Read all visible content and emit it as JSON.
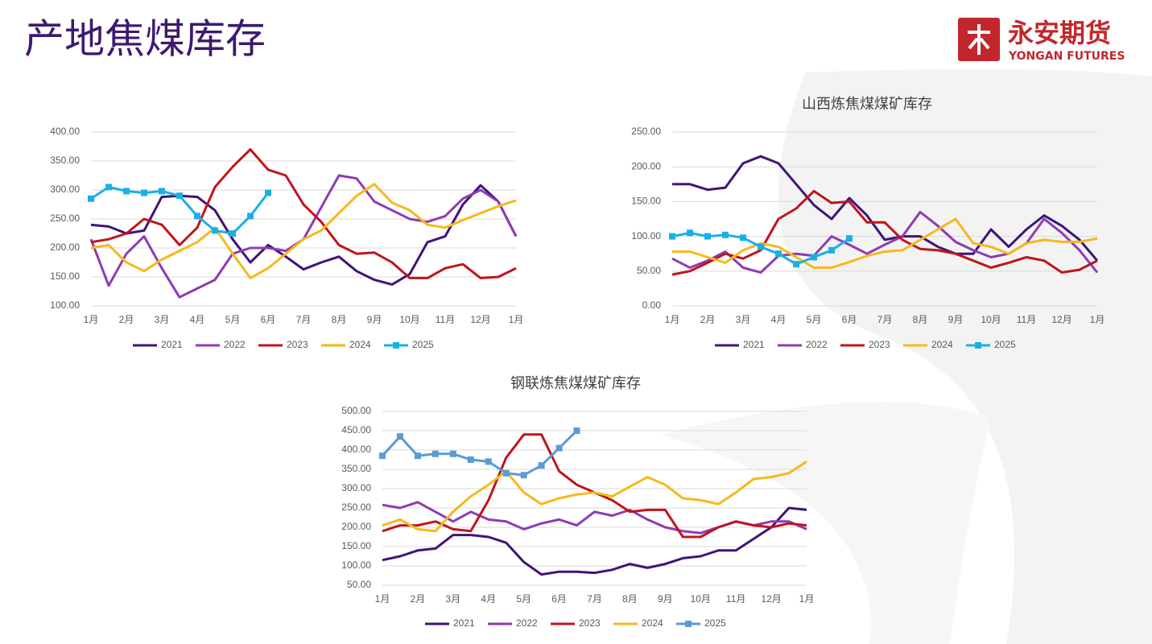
{
  "header": {
    "title": "产地焦煤库存",
    "logo_text": "永安期货",
    "logo_sub": "YONGAN FUTURES"
  },
  "chart_data": [
    {
      "type": "line",
      "categories": [
        "1月",
        null,
        "2月",
        null,
        "3月",
        null,
        "4月",
        null,
        "5月",
        null,
        "6月",
        null,
        "7月",
        null,
        "8月",
        null,
        "9月",
        null,
        "10月",
        null,
        "11月",
        null,
        "12月",
        null,
        "1月"
      ],
      "ylim": [
        100,
        400
      ],
      "yticks": [
        {
          "value": 100,
          "label": "100.00"
        },
        {
          "value": 150,
          "label": "150.00"
        },
        {
          "value": 200,
          "label": "200.00"
        },
        {
          "value": 250,
          "label": "250.00"
        },
        {
          "value": 300,
          "label": "300.00"
        },
        {
          "value": 350,
          "label": "350.00"
        },
        {
          "value": 400,
          "label": "400.00"
        }
      ],
      "grid": true,
      "legend": "bottom",
      "series": [
        {
          "name": "2021",
          "color": "#3f1479",
          "values": [
            240,
            237,
            225,
            230,
            288,
            290,
            288,
            265,
            215,
            175,
            205,
            185,
            163,
            175,
            185,
            160,
            145,
            137,
            155,
            210,
            220,
            275,
            308,
            280,
            220
          ]
        },
        {
          "name": "2022",
          "color": "#8e3bb5",
          "values": [
            215,
            135,
            190,
            220,
            165,
            115,
            130,
            145,
            190,
            200,
            200,
            195,
            215,
            270,
            325,
            320,
            280,
            265,
            250,
            245,
            255,
            285,
            300,
            280,
            220
          ]
        },
        {
          "name": "2023",
          "color": "#c0141c",
          "values": [
            210,
            215,
            225,
            250,
            240,
            205,
            235,
            305,
            340,
            370,
            335,
            325,
            275,
            245,
            205,
            190,
            192,
            175,
            148,
            148,
            165,
            172,
            148,
            150,
            165
          ]
        },
        {
          "name": "2024",
          "color": "#f6b81c",
          "values": [
            200,
            205,
            175,
            160,
            180,
            195,
            210,
            235,
            190,
            148,
            165,
            190,
            215,
            230,
            260,
            290,
            310,
            278,
            265,
            240,
            235,
            248,
            260,
            272,
            282
          ]
        },
        {
          "name": "2025",
          "color": "#1ab0e6",
          "marker": "square",
          "values": [
            285,
            305,
            298,
            295,
            298,
            290,
            255,
            230,
            225,
            255,
            295,
            null,
            null,
            null,
            null,
            null,
            null,
            null,
            null,
            null,
            null,
            null,
            null,
            null,
            null
          ]
        }
      ]
    },
    {
      "type": "line",
      "title": "山西炼焦煤煤矿库存",
      "categories": [
        "1月",
        null,
        "2月",
        null,
        "3月",
        null,
        "4月",
        null,
        "5月",
        null,
        "6月",
        null,
        "7月",
        null,
        "8月",
        null,
        "9月",
        null,
        "10月",
        null,
        "11月",
        null,
        "12月",
        null,
        "1月"
      ],
      "ylim": [
        0,
        250
      ],
      "yticks": [
        {
          "value": 0,
          "label": "0.00"
        },
        {
          "value": 50,
          "label": "50.00"
        },
        {
          "value": 100,
          "label": "100.00"
        },
        {
          "value": 150,
          "label": "150.00"
        },
        {
          "value": 200,
          "label": "200.00"
        },
        {
          "value": 250,
          "label": "250.00"
        }
      ],
      "grid": true,
      "legend": "bottom",
      "series": [
        {
          "name": "2021",
          "color": "#3f1479",
          "values": [
            175,
            175,
            167,
            170,
            205,
            215,
            205,
            175,
            145,
            125,
            155,
            130,
            95,
            100,
            100,
            85,
            75,
            75,
            110,
            85,
            110,
            130,
            115,
            95,
            65
          ]
        },
        {
          "name": "2022",
          "color": "#8e3bb5",
          "values": [
            68,
            55,
            65,
            78,
            55,
            48,
            72,
            75,
            72,
            100,
            88,
            75,
            88,
            100,
            135,
            115,
            92,
            80,
            70,
            75,
            90,
            125,
            105,
            80,
            48
          ]
        },
        {
          "name": "2023",
          "color": "#c0141c",
          "values": [
            45,
            50,
            62,
            75,
            68,
            80,
            125,
            140,
            165,
            148,
            150,
            120,
            120,
            95,
            82,
            80,
            75,
            65,
            55,
            62,
            70,
            65,
            48,
            52,
            65
          ]
        },
        {
          "name": "2024",
          "color": "#f6b81c",
          "values": [
            78,
            78,
            70,
            62,
            80,
            90,
            85,
            70,
            55,
            55,
            63,
            72,
            78,
            80,
            95,
            110,
            125,
            90,
            85,
            75,
            90,
            95,
            92,
            92,
            97
          ]
        },
        {
          "name": "2025",
          "color": "#1ab0e6",
          "marker": "square",
          "values": [
            100,
            105,
            100,
            102,
            98,
            85,
            75,
            60,
            70,
            80,
            97,
            null,
            null,
            null,
            null,
            null,
            null,
            null,
            null,
            null,
            null,
            null,
            null,
            null,
            null
          ]
        }
      ]
    },
    {
      "type": "line",
      "title": "钢联炼焦煤煤矿库存",
      "categories": [
        "1月",
        null,
        "2月",
        null,
        "3月",
        null,
        "4月",
        null,
        "5月",
        null,
        "6月",
        null,
        "7月",
        null,
        "8月",
        null,
        "9月",
        null,
        "10月",
        null,
        "11月",
        null,
        "12月",
        null,
        "1月"
      ],
      "ylim": [
        50,
        500
      ],
      "yticks": [
        {
          "value": 50,
          "label": "50.00"
        },
        {
          "value": 100,
          "label": "100.00"
        },
        {
          "value": 150,
          "label": "150.00"
        },
        {
          "value": 200,
          "label": "200.00"
        },
        {
          "value": 250,
          "label": "250.00"
        },
        {
          "value": 300,
          "label": "300.00"
        },
        {
          "value": 350,
          "label": "350.00"
        },
        {
          "value": 400,
          "label": "400.00"
        },
        {
          "value": 450,
          "label": "450.00"
        },
        {
          "value": 500,
          "label": "500.00"
        }
      ],
      "grid": true,
      "legend": "bottom",
      "series": [
        {
          "name": "2021",
          "color": "#3f1479",
          "values": [
            115,
            125,
            140,
            145,
            180,
            180,
            175,
            160,
            110,
            78,
            85,
            85,
            82,
            90,
            105,
            95,
            105,
            120,
            125,
            140,
            140,
            170,
            200,
            250,
            245
          ]
        },
        {
          "name": "2022",
          "color": "#8e3bb5",
          "values": [
            258,
            250,
            265,
            240,
            215,
            240,
            220,
            215,
            195,
            210,
            220,
            205,
            240,
            230,
            245,
            220,
            200,
            190,
            185,
            200,
            215,
            205,
            215,
            215,
            195
          ]
        },
        {
          "name": "2023",
          "color": "#c0141c",
          "values": [
            190,
            205,
            205,
            215,
            195,
            190,
            270,
            380,
            440,
            440,
            345,
            310,
            290,
            270,
            240,
            245,
            245,
            175,
            175,
            200,
            215,
            205,
            200,
            210,
            205
          ]
        },
        {
          "name": "2024",
          "color": "#f6b81c",
          "values": [
            205,
            220,
            195,
            190,
            240,
            280,
            310,
            345,
            290,
            260,
            275,
            285,
            290,
            280,
            305,
            330,
            310,
            275,
            270,
            260,
            290,
            325,
            330,
            340,
            370
          ]
        },
        {
          "name": "2025",
          "color": "#5b9bd5",
          "marker": "square",
          "values": [
            385,
            435,
            385,
            390,
            390,
            375,
            370,
            340,
            335,
            360,
            405,
            450,
            null,
            null,
            null,
            null,
            null,
            null,
            null,
            null,
            null,
            null,
            null,
            null,
            null
          ]
        }
      ]
    }
  ]
}
